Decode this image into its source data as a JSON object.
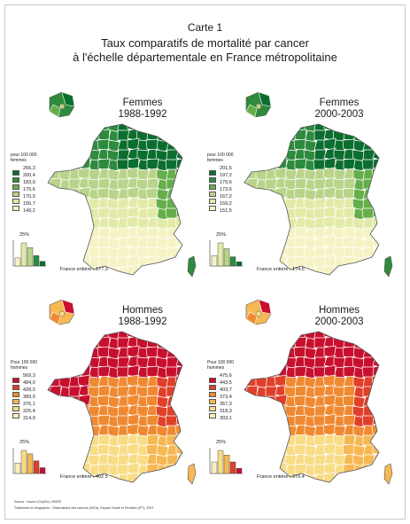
{
  "header": {
    "label": "Carte 1",
    "title_line1": "Taux comparatifs de mortalité par cancer",
    "title_line2": "à l'échelle départementale en France métropolitaine"
  },
  "palettes": {
    "women": [
      "#0b6e2f",
      "#2e8b3e",
      "#66ad4b",
      "#b9d48a",
      "#e3eaa8",
      "#f5f3c4"
    ],
    "men": [
      "#c8102e",
      "#e0402a",
      "#ef8a32",
      "#f6b853",
      "#f8dc86",
      "#fbf0bb"
    ]
  },
  "maps": [
    {
      "title_line1": "Femmes",
      "title_line2": "1988-1992",
      "legend_unit_line1": "pour 100 000",
      "legend_unit_line2": "femmes",
      "legend_values": [
        "266,3",
        "200,4",
        "183,9",
        "175,6",
        "170,9",
        "156,7",
        "149,2"
      ],
      "histogram_label": "25%",
      "histogram": [
        0.35,
        1.0,
        0.8,
        0.45,
        0.2
      ],
      "total_label": "France entière : 177.3"
    },
    {
      "title_line1": "Femmes",
      "title_line2": "2000-2003",
      "legend_unit_line1": "pour 100 000",
      "legend_unit_line2": "femmes",
      "legend_values": [
        "201,5",
        "197,2",
        "179,6",
        "173,6",
        "167,2",
        "159,2",
        "151,5"
      ],
      "histogram_label": "25%",
      "histogram": [
        0.45,
        1.0,
        0.75,
        0.4,
        0.18
      ],
      "total_label": "France entière : 174.6"
    },
    {
      "title_line1": "Hommes",
      "title_line2": "1988-1992",
      "legend_unit_line1": "Pour 100 000",
      "legend_unit_line2": "hommes",
      "legend_values": [
        "569,3",
        "484,0",
        "428,0",
        "389,9",
        "376,1",
        "325,4",
        "314,9"
      ],
      "histogram_label": "25%",
      "histogram": [
        0.45,
        1.0,
        0.85,
        0.55,
        0.25
      ],
      "total_label": "France entière : 402.5"
    },
    {
      "title_line1": "Hommes",
      "title_line2": "2000-2003",
      "legend_unit_line1": "Pour 100 000",
      "legend_unit_line2": "hommes",
      "legend_values": [
        "475,6",
        "443,5",
        "403,7",
        "373,4",
        "357,3",
        "318,3",
        "303,1"
      ],
      "histogram_label": "25%",
      "histogram": [
        0.5,
        1.0,
        0.8,
        0.5,
        0.22
      ],
      "total_label": "France entière : 379.4"
    }
  ],
  "source_line1": "Source : Inserm (CépiDc), INSEE",
  "source_line2": "Traitement et infographie : Observatoire des cancers (INCa), Espace Santé et Territoire (IFT), 2007"
}
